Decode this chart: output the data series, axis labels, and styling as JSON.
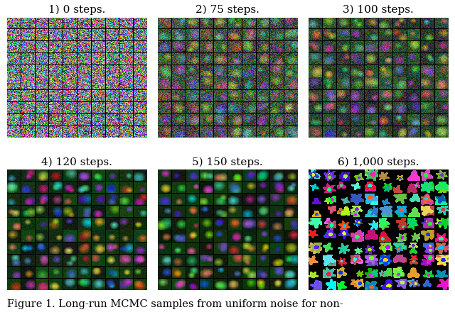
{
  "titles": [
    "1) 0 steps.",
    "2) 75 steps.",
    "3) 100 steps.",
    "4) 120 steps.",
    "5) 150 steps.",
    "6) 1,000 steps."
  ],
  "caption": "Figure 1. Long-run MCMC samples from uniform noise for non-",
  "grid_rows": 10,
  "grid_cols": 10,
  "cell_size": 18,
  "figure_bg_color": "#ffffff",
  "title_fontsize": 11,
  "caption_fontsize": 10.5,
  "panel_border_color": [
    0,
    0,
    0
  ],
  "noise_alpha": [
    1.0,
    0.45,
    0.3,
    0.1,
    0.08,
    0.0
  ],
  "flower_styles": [
    "noise",
    "noisy_flower",
    "noisy_flower",
    "flower",
    "flower",
    "posterized"
  ],
  "bg_darkness": [
    0.5,
    0.3,
    0.2,
    0.05,
    0.03,
    0.0
  ]
}
